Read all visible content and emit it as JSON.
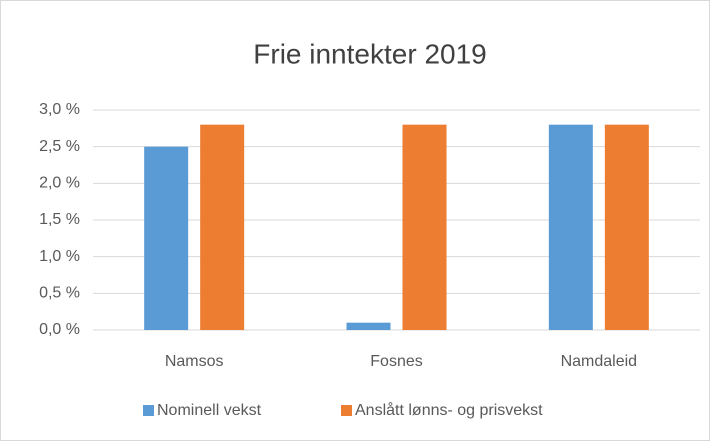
{
  "chart_data": {
    "type": "bar",
    "title": "Frie inntekter 2019",
    "categories": [
      "Namsos",
      "Fosnes",
      "Namdaleid"
    ],
    "series": [
      {
        "name": "Nominell vekst",
        "color": "#5b9bd5",
        "values": [
          2.5,
          0.1,
          2.8
        ]
      },
      {
        "name": "Anslått lønns- og prisvekst",
        "color": "#ed7d31",
        "values": [
          2.8,
          2.8,
          2.8
        ]
      }
    ],
    "ylim": [
      0,
      3
    ],
    "yticks": [
      {
        "value": 0,
        "label": "0,0 %"
      },
      {
        "value": 0.5,
        "label": "0,5 %"
      },
      {
        "value": 1,
        "label": "1,0 %"
      },
      {
        "value": 1.5,
        "label": "1,5 %"
      },
      {
        "value": 2,
        "label": "2,0 %"
      },
      {
        "value": 2.5,
        "label": "2,5 %"
      },
      {
        "value": 3,
        "label": "3,0 %"
      }
    ],
    "grid": true,
    "legend": "bottom"
  }
}
